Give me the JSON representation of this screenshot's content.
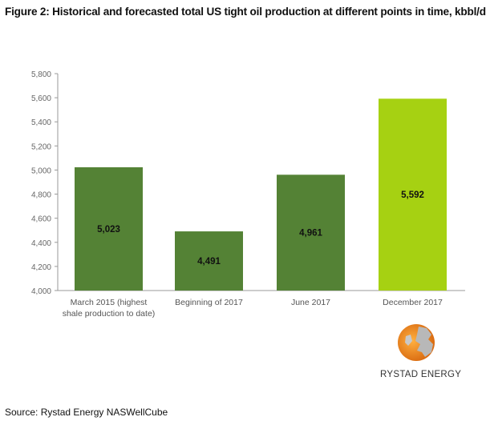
{
  "chart_data": {
    "type": "bar",
    "title": "Figure 2: Historical and forecasted total US tight oil production at different points in time, kbbl/d",
    "categories": [
      "March 2015 (highest|shale production to date)",
      "Beginning of 2017",
      "June 2017",
      "December 2017"
    ],
    "values": [
      5023,
      4491,
      4961,
      5592
    ],
    "data_labels": [
      "5,023",
      "4,491",
      "4,961",
      "5,592"
    ],
    "colors": [
      "#548235",
      "#548235",
      "#548235",
      "#a6d112"
    ],
    "ylim": [
      4000,
      5800
    ],
    "yticks": [
      4000,
      4200,
      4400,
      4600,
      4800,
      5000,
      5200,
      5400,
      5600,
      5800
    ],
    "ytick_labels": [
      "4,000",
      "4,200",
      "4,400",
      "4,600",
      "4,800",
      "5,000",
      "5,200",
      "5,400",
      "5,600",
      "5,800"
    ],
    "xlabel": "",
    "ylabel": "",
    "grid": false
  },
  "source": "Source: Rystad Energy NASWellCube",
  "logo_text": "RYSTAD ENERGY"
}
